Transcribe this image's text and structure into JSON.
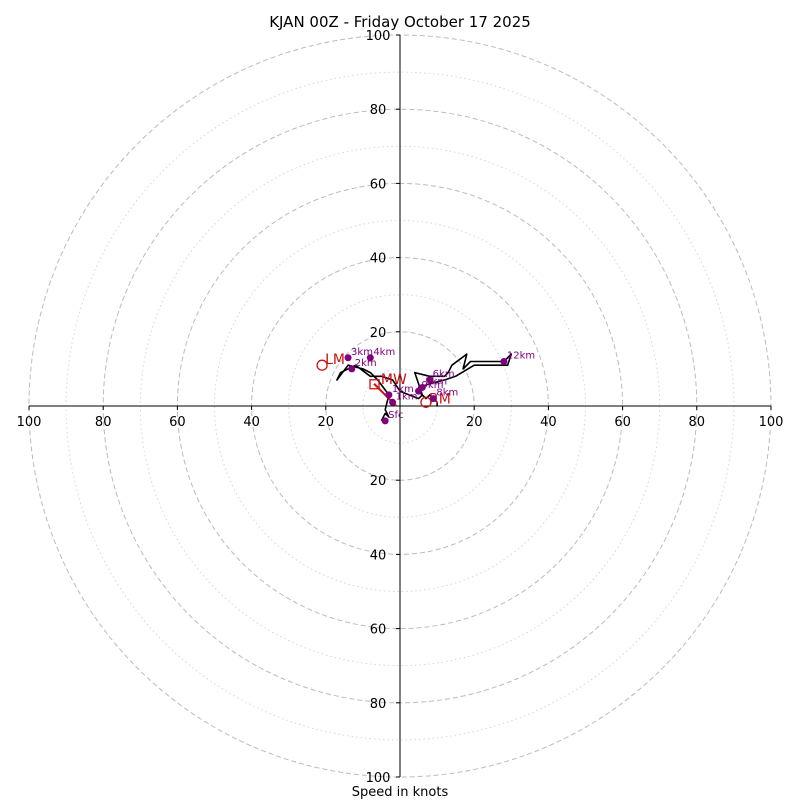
{
  "chart_data": {
    "type": "hodograph",
    "title": "KJAN 00Z - Friday October 17 2025",
    "xlabel": "Speed in knots",
    "axis_limit": 100,
    "ring_major": [
      20,
      40,
      60,
      80,
      100
    ],
    "ring_minor": [
      10,
      30,
      50,
      70,
      90
    ],
    "tick_labels": {
      "x_left": [
        "100",
        "80",
        "60",
        "40",
        "20"
      ],
      "x_right": [
        "20",
        "40",
        "60",
        "80",
        "100"
      ],
      "y_top": [
        "100",
        "80",
        "60",
        "40",
        "20"
      ],
      "y_bottom": [
        "20",
        "40",
        "60",
        "80",
        "100"
      ]
    },
    "colors": {
      "trace": "#000000",
      "height_marker": "#800080",
      "motion": "#cc1111",
      "grid": "#bbbbbb",
      "axis": "#000000"
    },
    "trace": {
      "u": [
        -5,
        -4,
        -3,
        -4,
        -3,
        -6,
        -8,
        -10,
        -14,
        -17,
        -16,
        -12,
        -8,
        -5,
        -2,
        0,
        5,
        6,
        4,
        8,
        12,
        13,
        14,
        18,
        17,
        19,
        28,
        30,
        29,
        20,
        15,
        12,
        8,
        5,
        5,
        6,
        7,
        8,
        10,
        10
      ],
      "v": [
        -4,
        -2,
        -3,
        -1,
        3,
        7,
        9,
        10,
        11,
        7,
        9,
        11,
        8,
        8,
        7,
        4,
        2,
        3,
        9,
        8,
        8,
        9,
        11,
        14,
        10,
        12,
        12,
        14,
        11,
        11,
        8,
        7,
        6,
        5,
        4,
        3,
        2,
        3,
        1,
        0
      ]
    },
    "height_markers": [
      {
        "label": "Sfc",
        "u": -4,
        "v": -4
      },
      {
        "label": "1km",
        "u": -3,
        "v": 3
      },
      {
        "label": "2km",
        "u": -13,
        "v": 10
      },
      {
        "label": "3km",
        "u": -14,
        "v": 13
      },
      {
        "label": "4km",
        "u": -8,
        "v": 13
      },
      {
        "label": "5km",
        "u": 6,
        "v": 5
      },
      {
        "label": "6km",
        "u": 8,
        "v": 7
      },
      {
        "label": "9km",
        "u": 5,
        "v": 4
      },
      {
        "label": "12km",
        "u": 28,
        "v": 12
      },
      {
        "label": "1km",
        "u": -2,
        "v": 1
      },
      {
        "label": "8km",
        "u": 9,
        "v": 2
      }
    ],
    "motions": {
      "lm": {
        "label": "LM",
        "u": -21,
        "v": 11
      },
      "mw": {
        "label": "MW",
        "u": -3,
        "v": 7
      },
      "rm": {
        "label": "RM",
        "u": 7,
        "v": 1
      },
      "shear": {
        "u1": -7,
        "v1": 6,
        "u2": -1,
        "v2": 0
      }
    }
  }
}
